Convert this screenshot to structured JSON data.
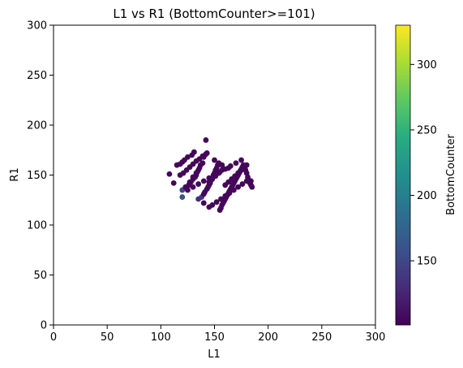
{
  "chart_data": {
    "type": "scatter",
    "title": "L1 vs R1 (BottomCounter>=101)",
    "xlabel": "L1",
    "ylabel": "R1",
    "xlim": [
      0,
      300
    ],
    "ylim": [
      0,
      300
    ],
    "xticks": [
      "0",
      "50",
      "100",
      "150",
      "200",
      "250",
      "300"
    ],
    "yticks": [
      "0",
      "50",
      "100",
      "150",
      "200",
      "250",
      "300"
    ],
    "grid": false,
    "legend": "none",
    "colorbar": {
      "label": "BottomCounter",
      "range": [
        101,
        330
      ],
      "ticks": [
        "150",
        "200",
        "250",
        "300"
      ],
      "tick_values": [
        150,
        200,
        250,
        300
      ],
      "colormap": "viridis"
    },
    "series": [
      {
        "x": [
          108,
          112,
          115,
          118,
          120,
          120,
          122,
          123,
          125,
          126,
          127,
          129,
          130,
          131,
          132,
          133,
          134,
          135,
          136,
          137,
          138,
          139,
          140,
          141,
          142,
          143,
          144,
          145,
          146,
          147,
          148,
          149,
          150,
          151,
          152,
          153,
          154,
          155,
          156,
          157,
          158,
          159,
          160,
          161,
          162,
          163,
          164,
          165,
          166,
          167,
          168,
          169,
          170,
          171,
          172,
          173,
          174,
          175,
          176,
          177,
          178,
          179,
          180,
          181,
          182,
          183,
          184,
          185,
          120,
          135,
          128,
          130,
          133,
          140,
          143,
          150,
          157,
          163,
          118,
          121,
          124,
          127,
          130,
          133,
          136,
          139,
          142,
          145,
          148,
          151,
          154,
          157,
          160,
          163,
          166,
          169,
          172,
          175,
          140,
          145,
          148,
          152,
          156,
          160,
          164,
          168,
          172,
          176,
          180,
          184,
          125,
          130,
          135,
          140,
          145,
          150,
          155,
          160,
          165,
          170,
          175,
          180
        ],
        "y": [
          151,
          142,
          160,
          161,
          163,
          135,
          165,
          138,
          168,
          140,
          143,
          170,
          146,
          173,
          148,
          150,
          153,
          155,
          157,
          160,
          128,
          162,
          131,
          133,
          185,
          136,
          138,
          140,
          142,
          145,
          147,
          150,
          152,
          155,
          157,
          160,
          162,
          115,
          117,
          120,
          122,
          124,
          126,
          128,
          130,
          132,
          134,
          136,
          138,
          140,
          142,
          144,
          146,
          148,
          150,
          152,
          154,
          156,
          158,
          160,
          158,
          155,
          152,
          148,
          145,
          142,
          140,
          138,
          128,
          126,
          143,
          148,
          152,
          168,
          172,
          165,
          160,
          157,
          150,
          152,
          155,
          158,
          161,
          164,
          166,
          169,
          171,
          143,
          146,
          149,
          152,
          155,
          140,
          143,
          146,
          149,
          152,
          155,
          122,
          118,
          120,
          123,
          126,
          129,
          132,
          135,
          138,
          141,
          144,
          144,
          135,
          138,
          141,
          144,
          147,
          150,
          153,
          156,
          159,
          162,
          165,
          160
        ],
        "c": [
          105,
          105,
          105,
          105,
          105,
          150,
          105,
          105,
          105,
          105,
          105,
          105,
          105,
          105,
          105,
          105,
          105,
          105,
          105,
          105,
          140,
          105,
          105,
          105,
          105,
          105,
          105,
          105,
          105,
          105,
          105,
          105,
          105,
          105,
          105,
          105,
          105,
          105,
          105,
          105,
          105,
          105,
          105,
          105,
          105,
          105,
          105,
          105,
          105,
          105,
          105,
          105,
          105,
          105,
          105,
          105,
          105,
          105,
          105,
          105,
          105,
          105,
          105,
          105,
          105,
          105,
          105,
          105,
          160,
          130,
          105,
          105,
          105,
          105,
          105,
          105,
          105,
          105,
          105,
          105,
          105,
          105,
          105,
          105,
          105,
          105,
          105,
          105,
          105,
          105,
          105,
          105,
          105,
          105,
          105,
          105,
          105,
          105,
          105,
          105,
          105,
          105,
          105,
          105,
          105,
          105,
          105,
          105,
          105,
          105,
          105,
          105,
          105,
          105,
          105,
          105,
          105,
          105,
          105,
          105,
          105,
          105
        ]
      }
    ]
  }
}
